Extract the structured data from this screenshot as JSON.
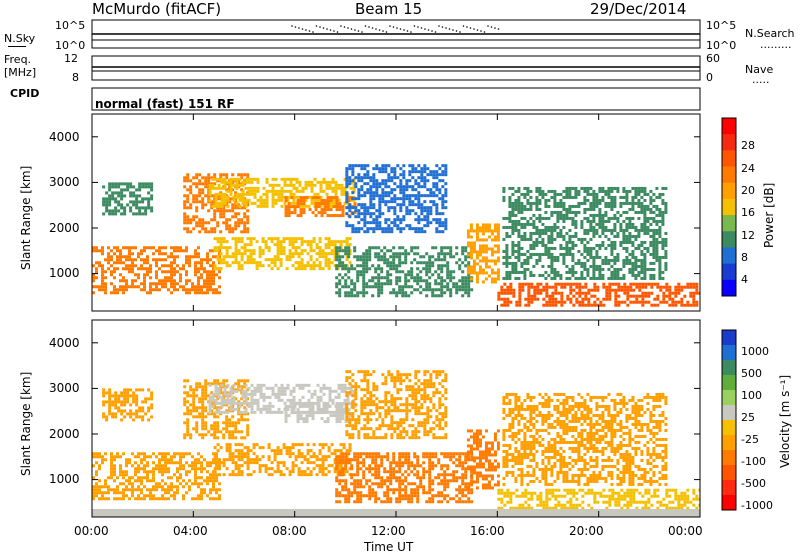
{
  "header": {
    "title": "McMurdo (fitACF)",
    "beam": "Beam 15",
    "date": "29/Dec/2014"
  },
  "sky_panel": {
    "left_label": "N.Sky",
    "left_ticks": [
      "10^5",
      "10^0"
    ],
    "right_ticks": [
      "10^5",
      "10^0"
    ],
    "right_label": "N.Search",
    "right_dots": "·········"
  },
  "freq_panel": {
    "left_label_1": "Freq.",
    "left_label_2": "[MHz]",
    "left_ticks": [
      "12",
      "8"
    ],
    "right_ticks": [
      "60",
      "0"
    ],
    "right_label": "Nave",
    "right_dots": "·····"
  },
  "cpid": {
    "label": "CPID",
    "value": "normal (fast) 151 RF"
  },
  "axes": {
    "ylabel": "Slant Range [km]",
    "yticks": [
      "4000",
      "3000",
      "2000",
      "1000"
    ],
    "xticks": [
      "00:00",
      "04:00",
      "08:00",
      "12:00",
      "16:00",
      "20:00",
      "00:00"
    ],
    "xlabel": "Time UT"
  },
  "power_colorbar": {
    "label": "Power [dB]",
    "ticks": [
      "28",
      "24",
      "20",
      "16",
      "12",
      "8",
      "4"
    ],
    "colors": [
      "#ff0000",
      "#f52a10",
      "#ff5500",
      "#ff7a00",
      "#ffa000",
      "#f5c000",
      "#7ab850",
      "#3c8a60",
      "#1f6fd4",
      "#1a3cd0",
      "#0a00ff"
    ]
  },
  "velocity_colorbar": {
    "label": "Velocity [m s⁻¹]",
    "ticks": [
      "1000",
      "500",
      "100",
      "25",
      "-25",
      "-100",
      "-500",
      "-1000"
    ],
    "colors": [
      "#1a3ccd",
      "#1f6fd4",
      "#3c8a60",
      "#5fae3c",
      "#9ad060",
      "#c8c8c0",
      "#f5c000",
      "#ffa000",
      "#ff7a00",
      "#ff5500",
      "#ff2a10",
      "#ff0000"
    ]
  },
  "chart_data": [
    {
      "type": "heatmap",
      "title": "Power",
      "xlabel": "Time UT",
      "ylabel": "Slant Range [km]",
      "xlim": [
        "00:00",
        "24:00"
      ],
      "ylim": [
        180,
        4500
      ],
      "colorbar_label": "Power [dB]",
      "colorbar_range": [
        0,
        30
      ],
      "echo_regions": [
        {
          "t_start": 0.0,
          "t_end": 5.0,
          "r_min": 600,
          "r_max": 1600,
          "level_db": 22
        },
        {
          "t_start": 0.4,
          "t_end": 2.4,
          "r_min": 2300,
          "r_max": 3000,
          "level_db": 8
        },
        {
          "t_start": 3.6,
          "t_end": 6.2,
          "r_min": 1900,
          "r_max": 3200,
          "level_db": 20
        },
        {
          "t_start": 4.6,
          "t_end": 10.4,
          "r_min": 2500,
          "r_max": 3100,
          "level_db": 14
        },
        {
          "t_start": 4.8,
          "t_end": 10.2,
          "r_min": 1100,
          "r_max": 1800,
          "level_db": 16
        },
        {
          "t_start": 7.6,
          "t_end": 10.4,
          "r_min": 2300,
          "r_max": 2700,
          "level_db": 22
        },
        {
          "t_start": 9.6,
          "t_end": 15.0,
          "r_min": 500,
          "r_max": 1600,
          "level_db": 8
        },
        {
          "t_start": 10.0,
          "t_end": 14.0,
          "r_min": 1900,
          "r_max": 3400,
          "level_db": 6
        },
        {
          "t_start": 14.8,
          "t_end": 16.0,
          "r_min": 800,
          "r_max": 2100,
          "level_db": 18
        },
        {
          "t_start": 16.0,
          "t_end": 24.0,
          "r_min": 300,
          "r_max": 800,
          "level_db": 24
        },
        {
          "t_start": 16.2,
          "t_end": 22.6,
          "r_min": 900,
          "r_max": 2900,
          "level_db": 10
        }
      ]
    },
    {
      "type": "heatmap",
      "title": "Velocity",
      "xlabel": "Time UT",
      "ylabel": "Slant Range [km]",
      "xlim": [
        "00:00",
        "24:00"
      ],
      "ylim": [
        180,
        4500
      ],
      "colorbar_label": "Velocity [m s⁻¹]",
      "colorbar_range": [
        -1000,
        1000
      ],
      "echo_regions": [
        {
          "t_start": 0.0,
          "t_end": 5.0,
          "r_min": 600,
          "r_max": 1600,
          "velocity": -150
        },
        {
          "t_start": 0.4,
          "t_end": 2.4,
          "r_min": 2300,
          "r_max": 3000,
          "velocity": -200
        },
        {
          "t_start": 3.6,
          "t_end": 6.2,
          "r_min": 1900,
          "r_max": 3200,
          "velocity": -250
        },
        {
          "t_start": 4.6,
          "t_end": 10.4,
          "r_min": 2500,
          "r_max": 3100,
          "velocity": 0
        },
        {
          "t_start": 4.8,
          "t_end": 10.2,
          "r_min": 1100,
          "r_max": 1800,
          "velocity": -120
        },
        {
          "t_start": 7.6,
          "t_end": 10.4,
          "r_min": 2300,
          "r_max": 2700,
          "velocity": 0
        },
        {
          "t_start": 9.6,
          "t_end": 15.0,
          "r_min": 500,
          "r_max": 1600,
          "velocity": -300
        },
        {
          "t_start": 10.0,
          "t_end": 14.0,
          "r_min": 1900,
          "r_max": 3400,
          "velocity": -200
        },
        {
          "t_start": 14.8,
          "t_end": 16.0,
          "r_min": 800,
          "r_max": 2100,
          "velocity": -400
        },
        {
          "t_start": 16.0,
          "t_end": 24.0,
          "r_min": 300,
          "r_max": 800,
          "velocity": -60
        },
        {
          "t_start": 16.2,
          "t_end": 22.6,
          "r_min": 900,
          "r_max": 2900,
          "velocity": -250
        }
      ]
    }
  ]
}
